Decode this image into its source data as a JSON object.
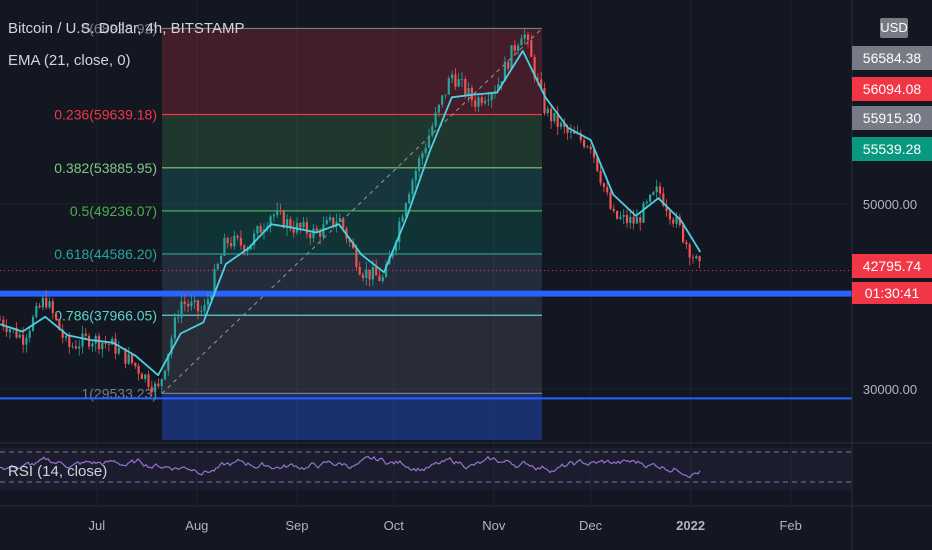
{
  "header": {
    "symbol_line": "Bitcoin / U.S. Dollar, 4h, BITSTAMP",
    "indicator_line": "EMA (21, close, 0)",
    "rsi_label": "RSI (14, close)",
    "currency_badge": "USD",
    "countdown": "01:30:41"
  },
  "colors": {
    "background": "#131722",
    "candle_up": "#26a69a",
    "candle_down": "#ef5350",
    "ema": "#4dd0e1",
    "support_line": "#2962ff",
    "rsi_line": "#9575cd",
    "current_price": "#f23645"
  },
  "chart_data": {
    "type": "line",
    "price_axis": {
      "ylim": [
        24500,
        72000
      ],
      "ticks": [
        30000,
        50000
      ],
      "tick_labels": [
        "30000.00",
        "50000.00"
      ]
    },
    "time_axis": {
      "tick_labels": [
        "Jul",
        "Aug",
        "Sep",
        "Oct",
        "Nov",
        "Dec",
        "2022",
        "Feb"
      ]
    },
    "price_series": {
      "x": [
        "2021-06-01",
        "2021-06-08",
        "2021-06-15",
        "2021-06-22",
        "2021-06-29",
        "2021-07-06",
        "2021-07-13",
        "2021-07-20",
        "2021-07-27",
        "2021-08-03",
        "2021-08-10",
        "2021-08-17",
        "2021-08-24",
        "2021-08-31",
        "2021-09-07",
        "2021-09-14",
        "2021-09-21",
        "2021-09-28",
        "2021-10-05",
        "2021-10-12",
        "2021-10-19",
        "2021-10-26",
        "2021-11-02",
        "2021-11-10",
        "2021-11-17",
        "2021-11-24",
        "2021-12-01",
        "2021-12-08",
        "2021-12-15",
        "2021-12-22",
        "2021-12-29",
        "2022-01-04"
      ],
      "values": [
        37500,
        35500,
        39800,
        34500,
        35500,
        34700,
        32500,
        29800,
        39500,
        38200,
        46000,
        45500,
        49000,
        47500,
        46800,
        48500,
        42800,
        41800,
        51000,
        57500,
        64000,
        61000,
        62800,
        68900,
        60000,
        57500,
        56500,
        48500,
        48000,
        51500,
        47000,
        42795.74
      ]
    },
    "ema_series": {
      "name": "EMA (21, close, 0)",
      "values": [
        37000,
        36200,
        37800,
        35800,
        35300,
        35000,
        33600,
        31500,
        36000,
        37200,
        43500,
        45200,
        47800,
        47400,
        46900,
        47800,
        44500,
        42600,
        48500,
        55500,
        61500,
        61800,
        62000,
        66500,
        61500,
        58200,
        56900,
        51000,
        48700,
        50600,
        48200,
        44800
      ]
    },
    "fibonacci": {
      "levels": [
        {
          "label": "0(68928.92)",
          "price": 68928.92,
          "line_color": "#787b86",
          "label_color": "#787b86",
          "fill": "rgba(242,54,69,0.22)"
        },
        {
          "label": "0.236(59639.18)",
          "price": 59639.18,
          "line_color": "#f23645",
          "label_color": "#f23645",
          "fill": "rgba(76,175,80,0.22)"
        },
        {
          "label": "0.382(53885.95)",
          "price": 53885.95,
          "line_color": "#81c784",
          "label_color": "#81c784",
          "fill": "rgba(38,166,154,0.22)"
        },
        {
          "label": "0.5(49236.07)",
          "price": 49236.07,
          "line_color": "#4caf50",
          "label_color": "#4caf50",
          "fill": "rgba(8,153,129,0.22)"
        },
        {
          "label": "0.618(44586.20)",
          "price": 44586.2,
          "line_color": "#26a69a",
          "label_color": "#26a69a",
          "fill": "rgba(89,125,150,0.22)"
        },
        {
          "label": "0.786(37966.05)",
          "price": 37966.05,
          "line_color": "#5ad4c8",
          "label_color": "#5ad4c8",
          "fill": "rgba(120,123,134,0.22)"
        },
        {
          "label": "1(29533.23)",
          "price": 29533.23,
          "line_color": "#787b86",
          "label_color": "#787b86",
          "fill": "rgba(41,98,255,0.35)"
        }
      ]
    },
    "support_levels": [
      40300,
      29000
    ],
    "right_axis_tags": [
      {
        "label": "56584.38",
        "price": 56584.38,
        "color": "#787b86"
      },
      {
        "label": "56094.08",
        "price": 56094.08,
        "color": "#f23645"
      },
      {
        "label": "55915.30",
        "price": 55915.3,
        "color": "#787b86"
      },
      {
        "label": "55539.28",
        "price": 55539.28,
        "color": "#089981"
      },
      {
        "label": "42795.74",
        "price": 42795.74,
        "color": "#f23645"
      }
    ],
    "rsi": {
      "name": "RSI (14, close)",
      "upper_band": 70,
      "lower_band": 30
    },
    "grid": true
  }
}
